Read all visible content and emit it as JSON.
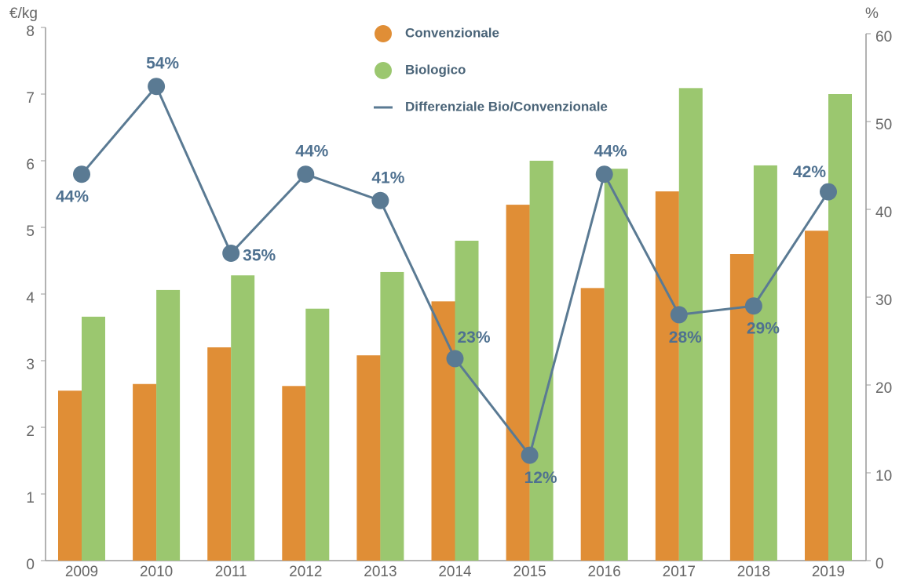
{
  "chart_data": {
    "type": "bar",
    "y_label": "€/kg",
    "y2_label": "%",
    "categories": [
      "2009",
      "2010",
      "2011",
      "2012",
      "2013",
      "2014",
      "2015",
      "2016",
      "2017",
      "2018",
      "2019"
    ],
    "series": [
      {
        "name": "Convenzionale",
        "color": "#e08e36",
        "values": [
          2.55,
          2.65,
          3.2,
          2.62,
          3.08,
          3.89,
          5.34,
          4.09,
          5.54,
          4.6,
          4.95
        ]
      },
      {
        "name": "Biologico",
        "color": "#9bc76f",
        "values": [
          3.66,
          4.06,
          4.28,
          3.78,
          4.33,
          4.8,
          6.0,
          5.88,
          7.09,
          5.93,
          7.0
        ]
      },
      {
        "name": "Differenziale Bio/Convenzionale",
        "color": "#5a7a93",
        "type": "line",
        "axis": "y2",
        "values": [
          44,
          54,
          35,
          44,
          41,
          23,
          12,
          44,
          28,
          29,
          42
        ],
        "value_labels": [
          "44%",
          "54%",
          "35%",
          "44%",
          "41%",
          "23%",
          "12%",
          "44%",
          "28%",
          "29%",
          "42%"
        ]
      }
    ],
    "ylim": [
      0,
      8
    ],
    "yticks": [
      0,
      1,
      2,
      3,
      4,
      5,
      6,
      7,
      8
    ],
    "y2lim": [
      0,
      60
    ],
    "y2ticks": [
      0,
      10,
      20,
      30,
      40,
      50,
      60
    ]
  }
}
